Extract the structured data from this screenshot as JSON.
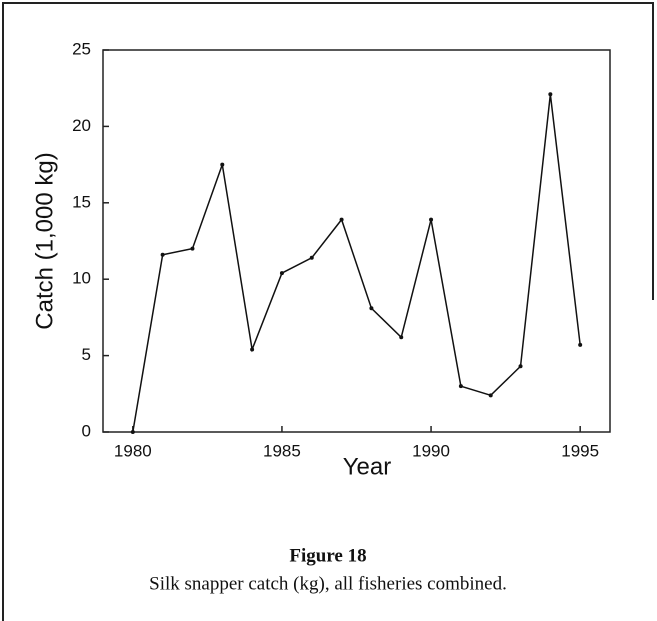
{
  "chart_data": {
    "type": "line",
    "x": [
      1980,
      1981,
      1982,
      1983,
      1984,
      1985,
      1986,
      1987,
      1988,
      1989,
      1990,
      1991,
      1992,
      1993,
      1994,
      1995
    ],
    "series": [
      {
        "name": "Silk snapper",
        "color": "#111111",
        "values": [
          0,
          11.6,
          12,
          17.5,
          5.4,
          10.4,
          11.4,
          13.9,
          8.1,
          6.2,
          13.9,
          3.0,
          2.4,
          4.3,
          22.1,
          5.7
        ]
      }
    ],
    "xlim": [
      1979,
      1996
    ],
    "xticks": [
      1980,
      1985,
      1990,
      1995
    ],
    "ylim": [
      0,
      25
    ],
    "yticks": [
      0,
      5,
      10,
      15,
      20,
      25
    ],
    "xlabel": "Year",
    "ylabel": "Catch (1,000 kg)",
    "figure_label": "Figure 18",
    "caption": "Silk snapper catch (kg), all fisheries combined."
  }
}
